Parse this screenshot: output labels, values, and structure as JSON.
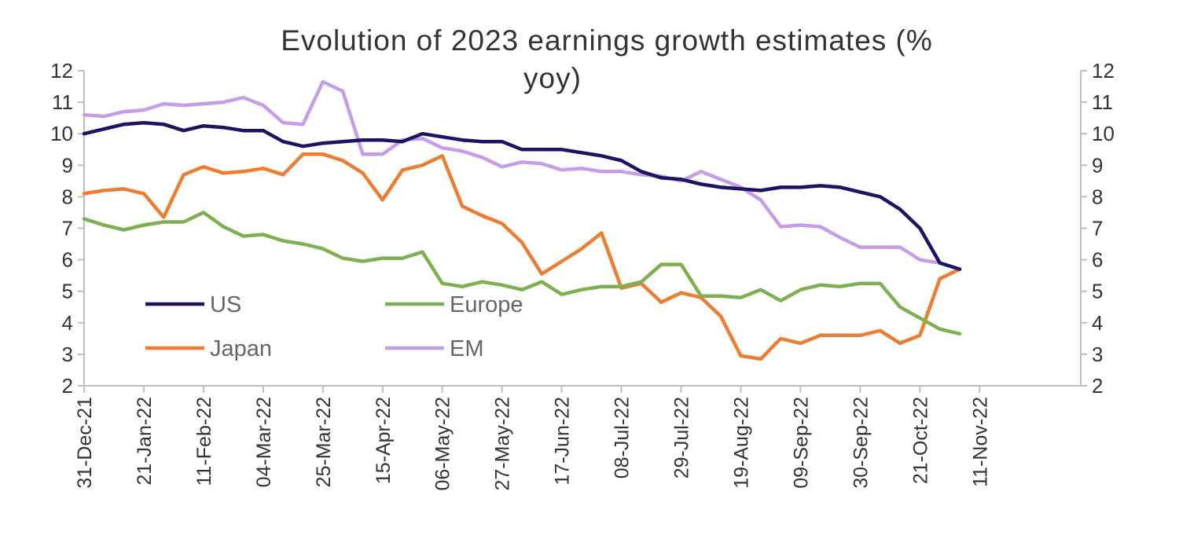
{
  "chart_data": {
    "type": "line",
    "title_lines": [
      "Evolution of 2023 earnings growth estimates (%",
      "yoy)"
    ],
    "ylim": [
      2,
      12
    ],
    "yticks": [
      2,
      3,
      4,
      5,
      6,
      7,
      8,
      9,
      10,
      11,
      12
    ],
    "secondary_y_axis": true,
    "xlim": [
      "2021-12-31",
      "2022-11-25"
    ],
    "xticks": [
      "31-Dec-21",
      "21-Jan-22",
      "11-Feb-22",
      "04-Mar-22",
      "25-Mar-22",
      "15-Apr-22",
      "06-May-22",
      "27-May-22",
      "17-Jun-22",
      "08-Jul-22",
      "29-Jul-22",
      "19-Aug-22",
      "09-Sep-22",
      "30-Sep-22",
      "21-Oct-22",
      "11-Nov-22"
    ],
    "grid": false,
    "legend": {
      "position": "lower-left",
      "columns": 2
    },
    "x": [
      "2021-12-31",
      "2022-01-07",
      "2022-01-14",
      "2022-01-21",
      "2022-01-28",
      "2022-02-04",
      "2022-02-11",
      "2022-02-18",
      "2022-02-25",
      "2022-03-04",
      "2022-03-11",
      "2022-03-18",
      "2022-03-25",
      "2022-04-01",
      "2022-04-08",
      "2022-04-15",
      "2022-04-22",
      "2022-04-29",
      "2022-05-06",
      "2022-05-13",
      "2022-05-20",
      "2022-05-27",
      "2022-06-03",
      "2022-06-10",
      "2022-06-17",
      "2022-06-24",
      "2022-07-01",
      "2022-07-08",
      "2022-07-15",
      "2022-07-22",
      "2022-07-29",
      "2022-08-05",
      "2022-08-12",
      "2022-08-19",
      "2022-08-26",
      "2022-09-02",
      "2022-09-09",
      "2022-09-16",
      "2022-09-23",
      "2022-09-30",
      "2022-10-07",
      "2022-10-14",
      "2022-10-21",
      "2022-10-28",
      "2022-11-04"
    ],
    "series": [
      {
        "name": "US",
        "color": "#1b1464",
        "values": [
          10.0,
          10.15,
          10.3,
          10.35,
          10.3,
          10.1,
          10.25,
          10.2,
          10.1,
          10.1,
          9.75,
          9.6,
          9.7,
          9.75,
          9.8,
          9.8,
          9.75,
          10.0,
          9.9,
          9.8,
          9.75,
          9.75,
          9.5,
          9.5,
          9.5,
          9.4,
          9.3,
          9.15,
          8.8,
          8.6,
          8.55,
          8.4,
          8.3,
          8.25,
          8.2,
          8.3,
          8.3,
          8.35,
          8.3,
          8.15,
          8.0,
          7.6,
          7.0,
          5.9,
          5.7
        ]
      },
      {
        "name": "Europe",
        "color": "#7fb04f",
        "values": [
          7.3,
          7.1,
          6.95,
          7.1,
          7.2,
          7.2,
          7.5,
          7.05,
          6.75,
          6.8,
          6.6,
          6.5,
          6.35,
          6.05,
          5.95,
          6.05,
          6.05,
          6.25,
          5.25,
          5.15,
          5.3,
          5.2,
          5.05,
          5.3,
          4.9,
          5.05,
          5.15,
          5.15,
          5.3,
          5.85,
          5.85,
          4.85,
          4.85,
          4.8,
          5.05,
          4.7,
          5.05,
          5.2,
          5.15,
          5.25,
          5.25,
          4.5,
          4.15,
          3.8,
          3.65
        ]
      },
      {
        "name": "Japan",
        "color": "#ed7d31",
        "values": [
          8.1,
          8.2,
          8.25,
          8.1,
          7.35,
          8.7,
          8.95,
          8.75,
          8.8,
          8.9,
          8.7,
          9.35,
          9.35,
          9.15,
          8.75,
          7.9,
          8.85,
          9.0,
          9.3,
          7.7,
          7.4,
          7.15,
          6.55,
          5.55,
          5.95,
          6.35,
          6.85,
          5.1,
          5.25,
          4.65,
          4.95,
          4.8,
          4.2,
          2.95,
          2.85,
          3.5,
          3.35,
          3.6,
          3.6,
          3.6,
          3.75,
          3.35,
          3.6,
          5.4,
          5.7
        ]
      },
      {
        "name": "EM",
        "color": "#c59de8",
        "values": [
          10.6,
          10.55,
          10.7,
          10.75,
          10.95,
          10.9,
          10.95,
          11.0,
          11.15,
          10.9,
          10.35,
          10.3,
          11.65,
          11.35,
          9.35,
          9.35,
          9.8,
          9.85,
          9.55,
          9.45,
          9.25,
          8.95,
          9.1,
          9.05,
          8.85,
          8.9,
          8.8,
          8.8,
          8.7,
          8.65,
          8.5,
          8.8,
          8.55,
          8.3,
          7.9,
          7.05,
          7.1,
          7.05,
          6.7,
          6.4,
          6.4,
          6.4,
          6.0,
          5.9,
          5.7
        ]
      }
    ]
  }
}
